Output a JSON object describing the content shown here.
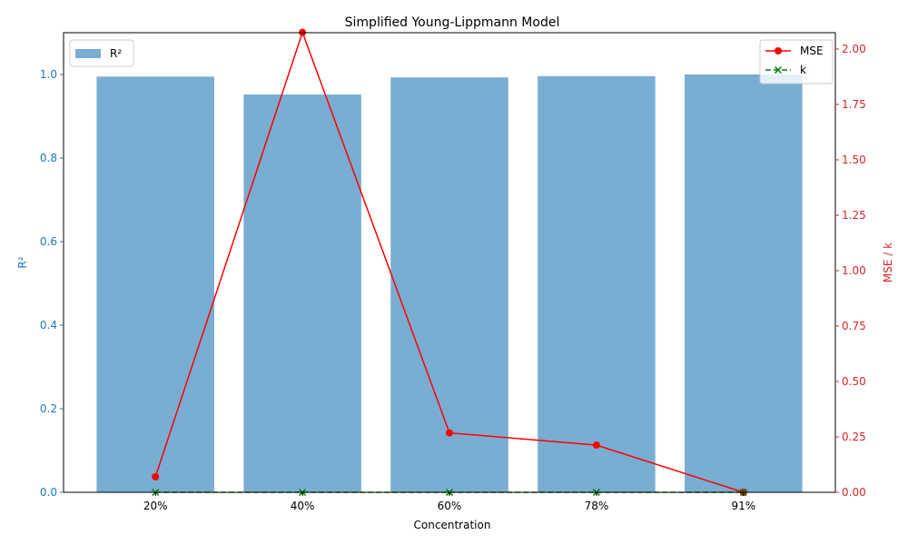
{
  "chart_data": {
    "type": "bar",
    "title": "Simplified Young-Lippmann Model",
    "xlabel": "Concentration",
    "ylabel_left": "R²",
    "ylabel_right": "MSE / k",
    "categories": [
      "20%",
      "40%",
      "60%",
      "78%",
      "91%"
    ],
    "ylim_left": [
      0,
      1.1
    ],
    "ylim_right": [
      0,
      2.0735
    ],
    "yticks_left": [
      0.0,
      0.2,
      0.4,
      0.6,
      0.8,
      1.0
    ],
    "yticks_left_labels": [
      "0.0",
      "0.2",
      "0.4",
      "0.6",
      "0.8",
      "1.0"
    ],
    "yticks_right": [
      0.0,
      0.25,
      0.5,
      0.75,
      1.0,
      1.25,
      1.5,
      1.75,
      2.0
    ],
    "yticks_right_labels": [
      "0.00",
      "0.25",
      "0.50",
      "0.75",
      "1.00",
      "1.25",
      "1.50",
      "1.75",
      "2.00"
    ],
    "grid": false,
    "series": [
      {
        "name": "R²",
        "kind": "bar",
        "axis": "left",
        "color": "#1f77b4",
        "values": [
          0.995,
          0.952,
          0.993,
          0.996,
          1.0
        ]
      },
      {
        "name": "MSE",
        "kind": "line",
        "axis": "right",
        "color": "#ff0000",
        "marker": "circle",
        "values": [
          0.07,
          2.075,
          0.268,
          0.213,
          0.0
        ]
      },
      {
        "name": "k",
        "kind": "line",
        "axis": "right",
        "color": "#008000",
        "marker": "x",
        "style": "dashed",
        "values": [
          0.0,
          0.0,
          0.0,
          0.0,
          0.0
        ]
      }
    ],
    "legends": {
      "left": {
        "placement": "upper-left",
        "entries": [
          "R²"
        ]
      },
      "right": {
        "placement": "upper-right",
        "entries": [
          "MSE",
          "k"
        ]
      }
    },
    "colors": {
      "left_axis": "#1f77b4",
      "right_axis": "#d62728",
      "bar": "#1f77b4",
      "mse": "#ff0000",
      "k": "#008000"
    }
  }
}
